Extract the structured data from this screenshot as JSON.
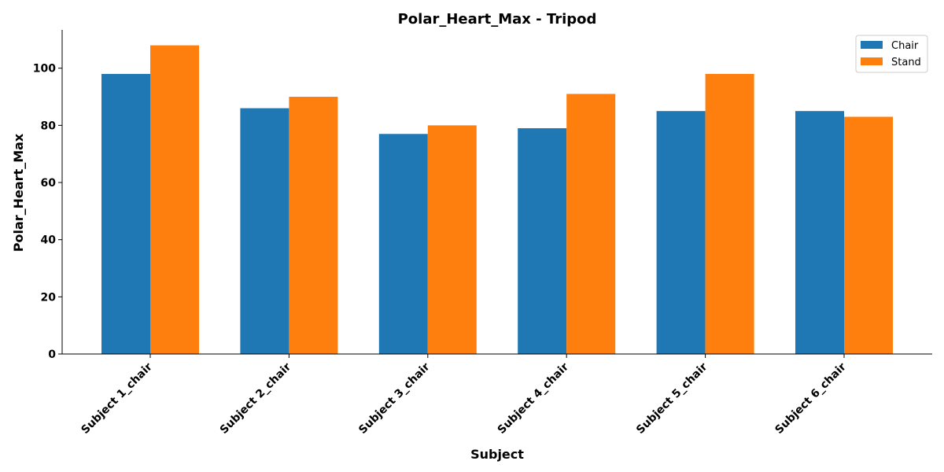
{
  "chart_data": {
    "type": "bar",
    "title": "Polar_Heart_Max - Tripod",
    "xlabel": "Subject",
    "ylabel": "Polar_Heart_Max",
    "categories": [
      "Subject 1_chair",
      "Subject 2_chair",
      "Subject 3_chair",
      "Subject 4_chair",
      "Subject 5_chair",
      "Subject 6_chair"
    ],
    "series": [
      {
        "name": "Chair",
        "color": "#1f77b4",
        "values": [
          98,
          86,
          77,
          79,
          85,
          85
        ]
      },
      {
        "name": "Stand",
        "color": "#ff7f0e",
        "values": [
          108,
          90,
          80,
          91,
          98,
          83
        ]
      }
    ],
    "ylim": [
      0,
      113.4
    ],
    "yticks": [
      0,
      20,
      40,
      60,
      80,
      100
    ],
    "grid": false,
    "legend_position": "top-right"
  }
}
